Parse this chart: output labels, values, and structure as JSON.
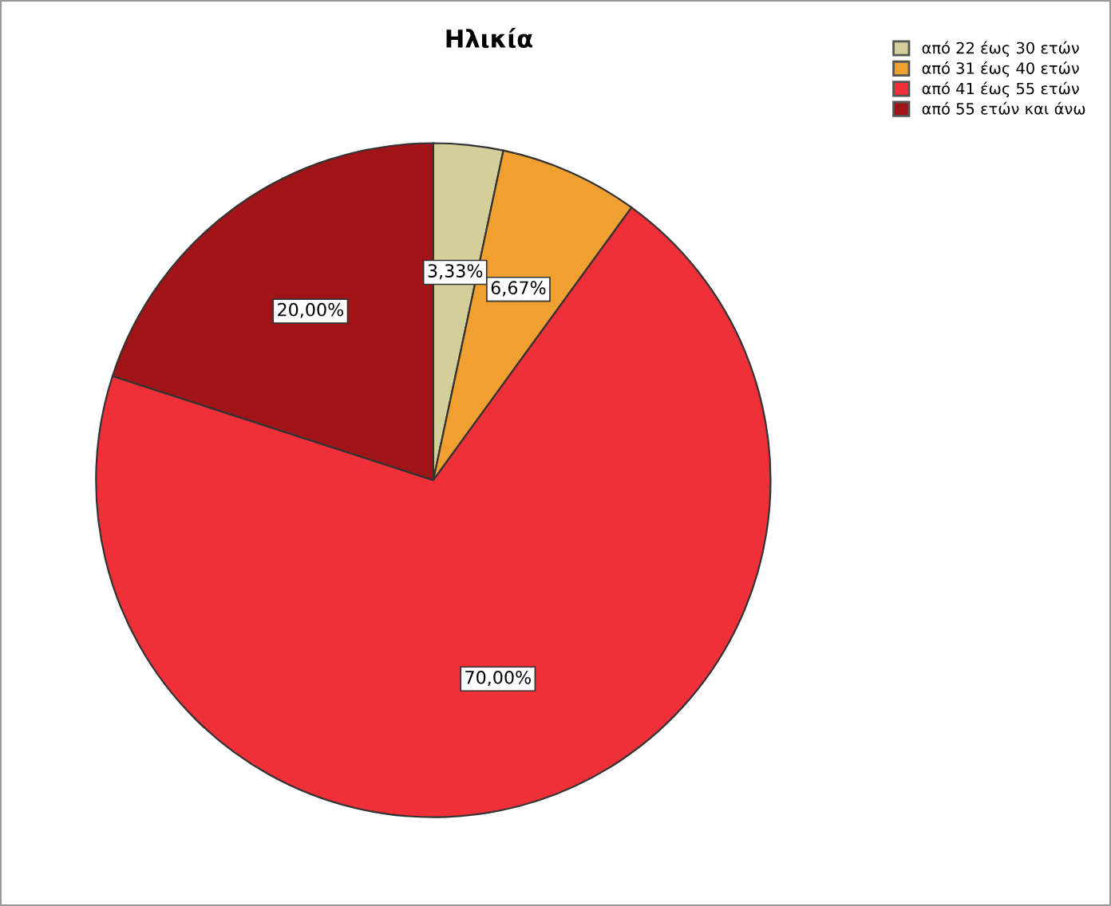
{
  "chart_data": {
    "type": "pie",
    "title": "Ηλικία",
    "categories": [
      "από 22 έως 30 ετών",
      "από 31 έως 40 ετών",
      "από 41 έως 55 ετών",
      "από 55 ετών και άνω"
    ],
    "values": [
      3.33,
      6.67,
      70.0,
      20.0
    ],
    "value_labels": [
      "3,33%",
      "6,67%",
      "70,00%",
      "20,00%"
    ],
    "colors": [
      "#d4cf9a",
      "#f0a030",
      "#ef3038",
      "#a01418"
    ],
    "legend": "top right"
  }
}
